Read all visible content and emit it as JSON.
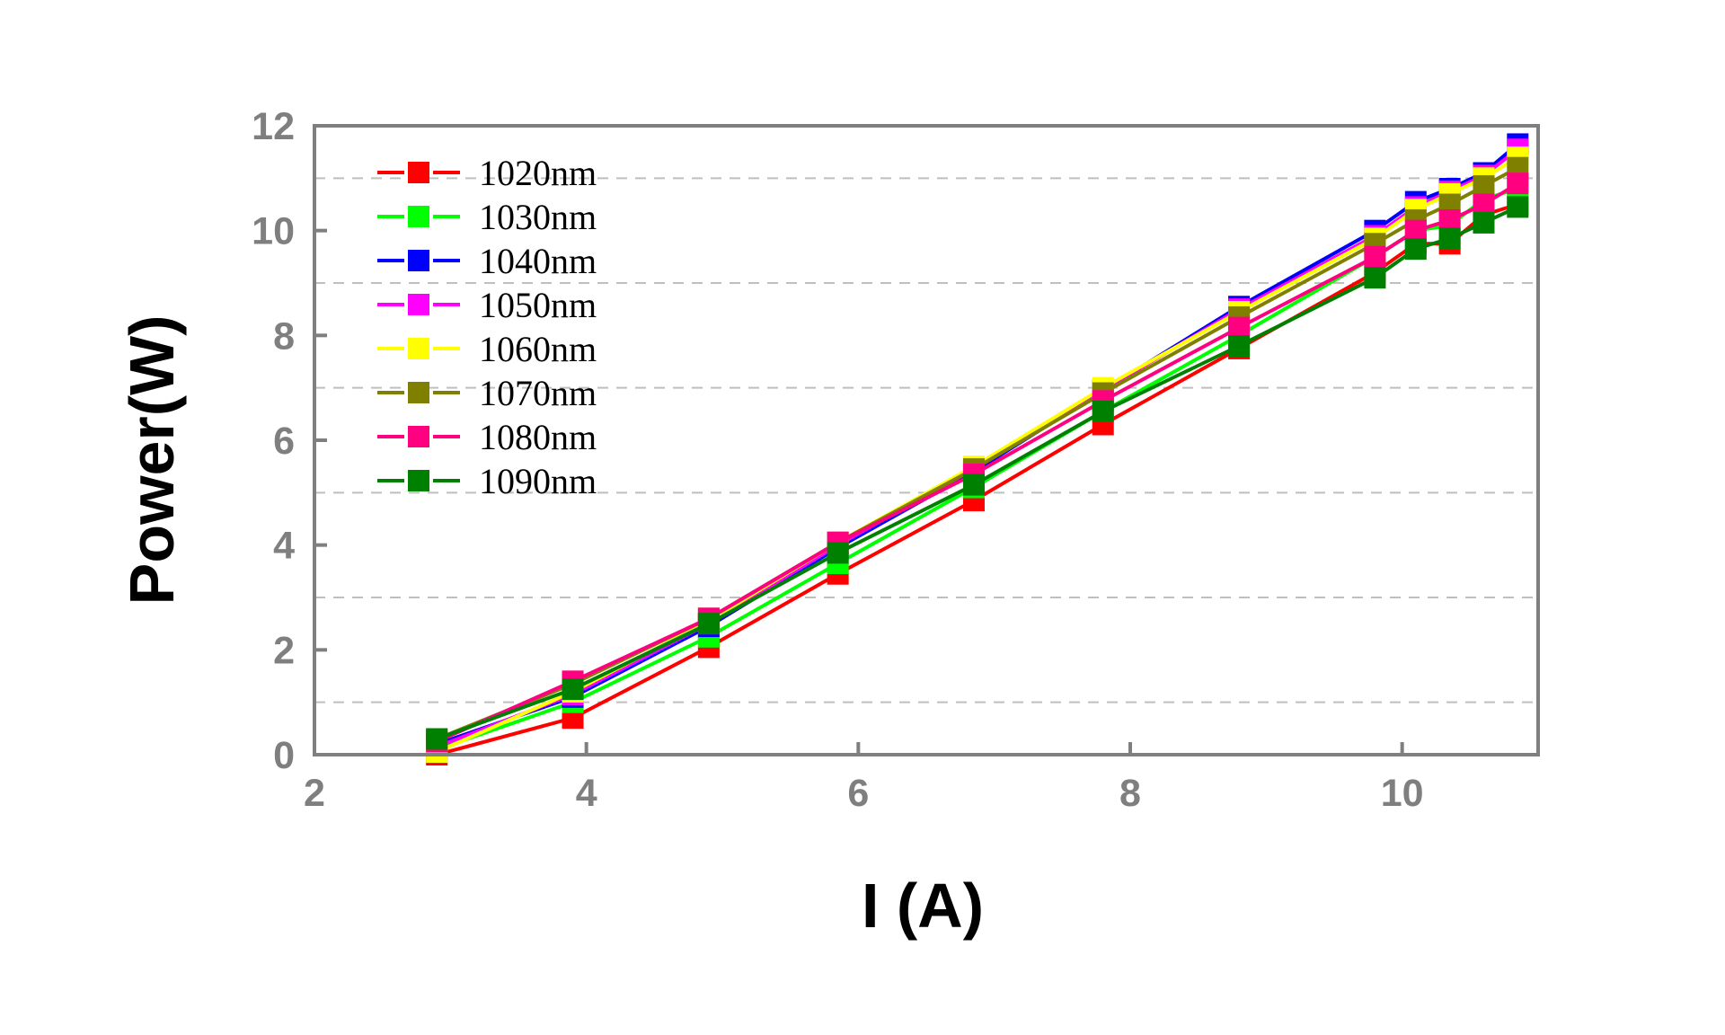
{
  "chart_data": {
    "type": "line",
    "title": "",
    "xlabel": "I (A)",
    "ylabel": "Power(W)",
    "xlim": [
      2,
      11
    ],
    "ylim": [
      0,
      12
    ],
    "x_ticks": [
      2,
      4,
      6,
      8,
      10
    ],
    "y_ticks": [
      0,
      2,
      4,
      6,
      8,
      10,
      12
    ],
    "grid": "dashed horizontal",
    "legend_position": "top-left",
    "x": [
      2.9,
      3.9,
      4.9,
      5.85,
      6.85,
      7.8,
      8.8,
      9.8,
      10.1,
      10.35,
      10.6,
      10.85
    ],
    "series": [
      {
        "name": "1020nm",
        "color": "#ff0000",
        "values": [
          0.0,
          0.7,
          2.05,
          3.45,
          4.85,
          6.3,
          7.75,
          9.2,
          9.75,
          9.75,
          10.3,
          10.5
        ]
      },
      {
        "name": "1030nm",
        "color": "#00ff00",
        "values": [
          0.1,
          1.0,
          2.25,
          3.65,
          5.1,
          6.55,
          8.0,
          9.5,
          10.0,
          10.1,
          10.6,
          10.8
        ]
      },
      {
        "name": "1040nm",
        "color": "#0000ff",
        "values": [
          0.2,
          1.1,
          2.45,
          3.95,
          5.4,
          6.95,
          8.55,
          10.0,
          10.55,
          10.8,
          11.1,
          11.65
        ]
      },
      {
        "name": "1050nm",
        "color": "#ff00ff",
        "values": [
          0.15,
          1.15,
          2.5,
          4.0,
          5.45,
          6.95,
          8.5,
          9.9,
          10.45,
          10.75,
          11.05,
          11.55
        ]
      },
      {
        "name": "1060nm",
        "color": "#ffff00",
        "values": [
          0.05,
          1.2,
          2.55,
          4.05,
          5.5,
          7.0,
          8.45,
          9.85,
          10.4,
          10.7,
          11.0,
          11.4
        ]
      },
      {
        "name": "1070nm",
        "color": "#808000",
        "values": [
          0.3,
          1.35,
          2.6,
          4.05,
          5.45,
          6.9,
          8.35,
          9.75,
          10.2,
          10.5,
          10.85,
          11.2
        ]
      },
      {
        "name": "1080nm",
        "color": "#ff0080",
        "values": [
          0.25,
          1.4,
          2.6,
          4.05,
          5.35,
          6.75,
          8.15,
          9.5,
          10.0,
          10.2,
          10.5,
          10.9
        ]
      },
      {
        "name": "1090nm",
        "color": "#008000",
        "values": [
          0.3,
          1.25,
          2.5,
          3.85,
          5.15,
          6.55,
          7.8,
          9.1,
          9.65,
          9.85,
          10.15,
          10.45
        ]
      }
    ]
  }
}
